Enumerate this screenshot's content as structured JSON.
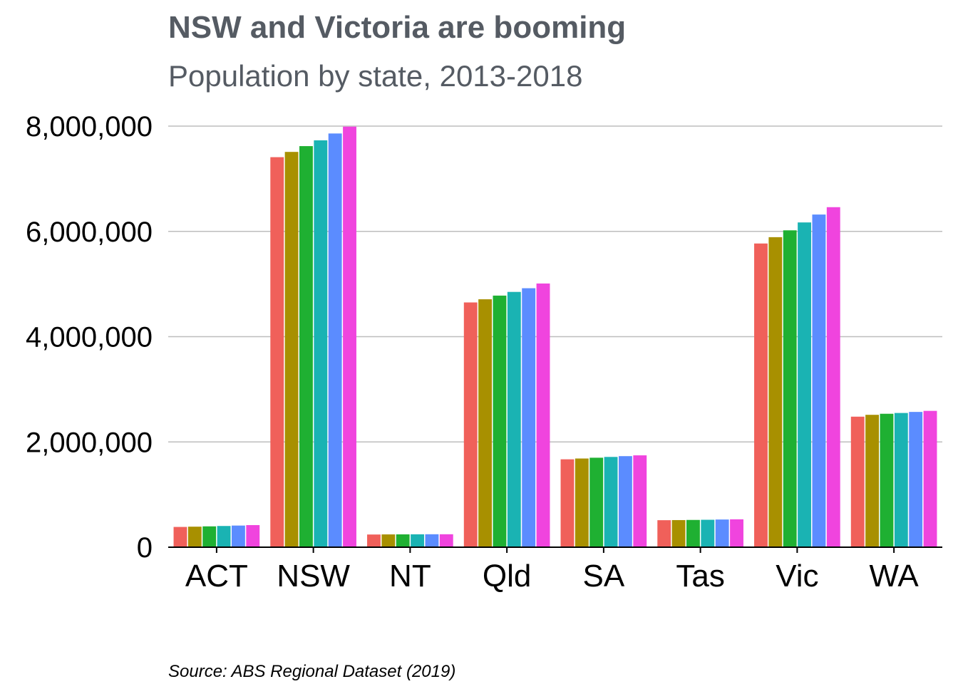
{
  "chart_data": {
    "type": "bar",
    "title": "NSW and Victoria are booming",
    "subtitle": "Population by state, 2013-2018",
    "caption": "Source: ABS Regional Dataset (2019)",
    "xlabel": "",
    "ylabel": "",
    "ylim": [
      0,
      8000000
    ],
    "yticks": [
      0,
      2000000,
      4000000,
      6000000,
      8000000
    ],
    "ytick_labels": [
      "0",
      "2,000,000",
      "4,000,000",
      "6,000,000",
      "8,000,000"
    ],
    "grid": true,
    "legend": "none",
    "categories": [
      "ACT",
      "NSW",
      "NT",
      "Qld",
      "SA",
      "Tas",
      "Vic",
      "WA"
    ],
    "series": [
      {
        "color": "#f0605a",
        "values": [
          385000,
          7410000,
          241000,
          4650000,
          1670000,
          513000,
          5770000,
          2480000
        ]
      },
      {
        "color": "#a89000",
        "values": [
          390000,
          7510000,
          243000,
          4710000,
          1685000,
          515000,
          5890000,
          2515000
        ]
      },
      {
        "color": "#1fb032",
        "values": [
          396000,
          7620000,
          244000,
          4780000,
          1700000,
          518000,
          6020000,
          2535000
        ]
      },
      {
        "color": "#1ab3b3",
        "values": [
          403000,
          7730000,
          245000,
          4850000,
          1715000,
          521000,
          6170000,
          2550000
        ]
      },
      {
        "color": "#5b8cff",
        "values": [
          411000,
          7860000,
          246000,
          4920000,
          1730000,
          526000,
          6320000,
          2570000
        ]
      },
      {
        "color": "#f044de",
        "values": [
          420000,
          7990000,
          246000,
          5010000,
          1745000,
          530000,
          6460000,
          2590000
        ]
      }
    ]
  }
}
